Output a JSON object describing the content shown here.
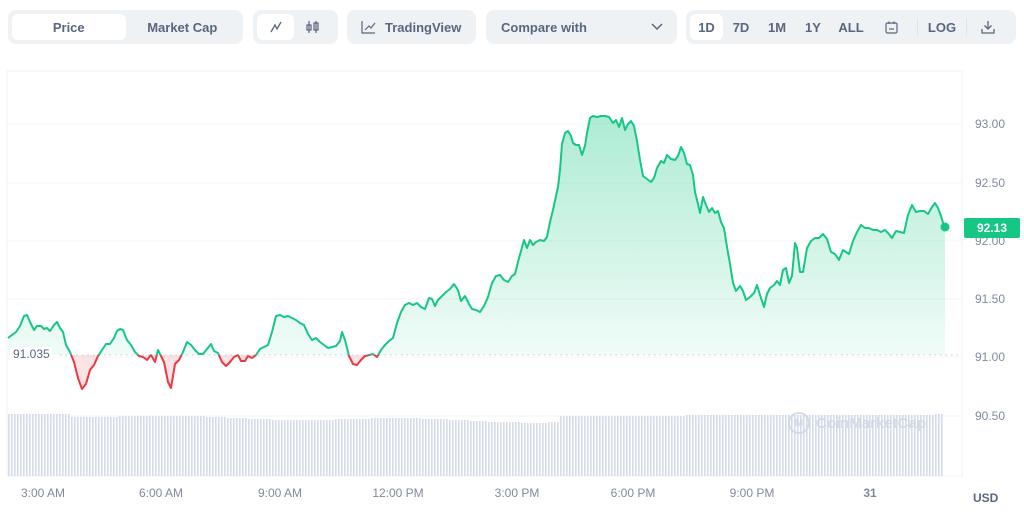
{
  "toolbar": {
    "view_tabs": [
      {
        "label": "Price",
        "active": true
      },
      {
        "label": "Market Cap",
        "active": false
      }
    ],
    "chart_type": [
      {
        "icon": "line-chart-icon",
        "glyph": "∿",
        "active": true
      },
      {
        "icon": "candlestick-icon",
        "glyph": "⫴",
        "active": false
      }
    ],
    "tradingview_label": "TradingView",
    "compare_label": "Compare with",
    "ranges": [
      {
        "label": "1D",
        "active": true
      },
      {
        "label": "7D",
        "active": false
      },
      {
        "label": "1M",
        "active": false
      },
      {
        "label": "1Y",
        "active": false
      },
      {
        "label": "ALL",
        "active": false
      }
    ],
    "log_label": "LOG"
  },
  "chart": {
    "open_price_label": "91.035",
    "current_price_label": "92.13",
    "currency": "USD",
    "watermark": "CoinMarketCap",
    "colors": {
      "up": "#16c784",
      "down": "#ea3943",
      "grid": "#f1f3f6",
      "volume": "#cfd6e4",
      "axis_text": "#808a9d"
    }
  },
  "chart_data": {
    "type": "line",
    "title": "",
    "xlabel": "",
    "ylabel": "USD",
    "ylim": [
      90.0,
      93.3
    ],
    "y_ticks": [
      "93.00",
      "92.50",
      "92.00",
      "91.50",
      "91.00",
      "90.50"
    ],
    "x_ticks": [
      "3:00 AM",
      "6:00 AM",
      "9:00 AM",
      "12:00 PM",
      "3:00 PM",
      "6:00 PM",
      "9:00 PM",
      "31"
    ],
    "baseline": 91.035,
    "current": 92.13,
    "grid": true,
    "legend": "none",
    "series": [
      {
        "name": "Price",
        "x": [
          "01:00",
          "01:30",
          "02:00",
          "02:30",
          "03:00",
          "03:30",
          "04:00",
          "04:30",
          "05:00",
          "05:30",
          "06:00",
          "06:30",
          "07:00",
          "07:30",
          "08:00",
          "08:30",
          "09:00",
          "09:30",
          "10:00",
          "10:30",
          "11:00",
          "11:30",
          "12:00",
          "12:30",
          "13:00",
          "13:30",
          "14:00",
          "14:30",
          "15:00",
          "15:30",
          "16:00",
          "16:30",
          "17:00",
          "17:30",
          "18:00",
          "18:30",
          "19:00",
          "19:30",
          "20:00",
          "20:30",
          "21:00",
          "21:30",
          "22:00",
          "22:30",
          "23:00",
          "23:30",
          "00:00",
          "00:30",
          "01:00",
          "01:30"
        ],
        "values": [
          91.18,
          91.38,
          91.25,
          91.27,
          90.75,
          91.05,
          91.25,
          91.05,
          91.01,
          90.75,
          91.05,
          91.1,
          91.0,
          90.95,
          91.03,
          91.38,
          91.32,
          91.2,
          91.2,
          90.95,
          91.05,
          91.4,
          91.5,
          91.6,
          91.45,
          91.75,
          91.65,
          92.0,
          92.05,
          92.9,
          92.65,
          93.07,
          93.0,
          92.55,
          92.8,
          92.3,
          91.5,
          91.5,
          91.65,
          91.92,
          92.15,
          91.85,
          92.15,
          92.05,
          92.2,
          92.3,
          92.35,
          92.25,
          92.4,
          92.13
        ]
      }
    ],
    "volume": "uniform light bars across full range, slightly taller at start and end"
  }
}
